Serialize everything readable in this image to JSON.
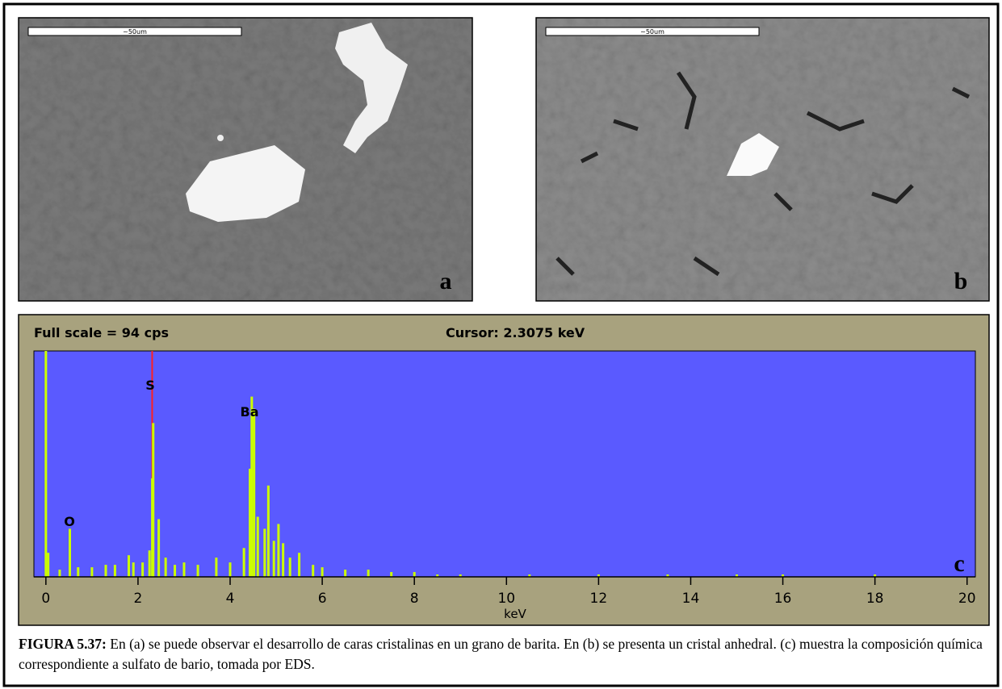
{
  "figure": {
    "panels": [
      {
        "label": "a",
        "scale_bar": "~50um"
      },
      {
        "label": "b",
        "scale_bar": "~50um"
      }
    ],
    "caption": {
      "label": "FIGURA 5.37:",
      "text": "En (a) se puede observar el desarrollo de caras cristalinas en un grano de barita. En (b) se presenta un cristal anhedral. (c) muestra la composición química correspondiente a sulfato de bario, tomada por EDS."
    }
  },
  "chart_data": {
    "type": "bar",
    "full_scale": "Full scale = 94  cps",
    "cursor": {
      "value": 2.3075,
      "label": "Cursor:  2.3075 keV"
    },
    "x_label": "keV",
    "panel_label": "c",
    "annotations": [
      "S",
      "Ba",
      "O"
    ],
    "x": [
      0,
      0.05,
      0.3,
      0.52,
      0.7,
      1.0,
      1.3,
      1.5,
      1.8,
      1.9,
      2.1,
      2.25,
      2.31,
      2.33,
      2.45,
      2.6,
      2.8,
      3.0,
      3.3,
      3.7,
      4.0,
      4.3,
      4.43,
      4.47,
      4.52,
      4.6,
      4.75,
      4.83,
      4.95,
      5.05,
      5.15,
      5.3,
      5.5,
      5.8,
      6.0,
      6.5,
      7.0,
      7.5,
      8.0,
      8.5,
      9.0,
      10.5,
      12.0,
      13.5,
      15.0,
      16.0,
      18.0
    ],
    "values": [
      94,
      10,
      3,
      20,
      4,
      4,
      5,
      5,
      9,
      6,
      6,
      11,
      41,
      64,
      24,
      8,
      5,
      6,
      5,
      8,
      6,
      12,
      45,
      75,
      70,
      25,
      20,
      38,
      15,
      22,
      14,
      8,
      10,
      5,
      4,
      3,
      3,
      2,
      2,
      1,
      1,
      1,
      1,
      1,
      1,
      1,
      1
    ],
    "color": "#ccff00",
    "xlim": [
      -0.26,
      20.18
    ],
    "ylim": [
      0,
      94
    ],
    "xticks": [
      0,
      2,
      4,
      6,
      8,
      10,
      12,
      14,
      16,
      18,
      20
    ]
  }
}
